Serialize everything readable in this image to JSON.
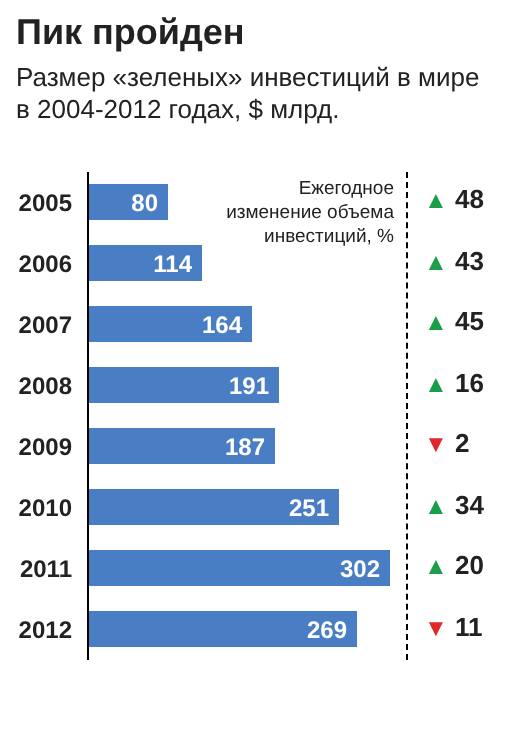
{
  "chart_data": {
    "type": "bar",
    "orientation": "horizontal",
    "title": "Пик пройден",
    "subtitle": "Размер «зеленых» инвестиций в мире в 2004-2012 годах, $ млрд.",
    "categories": [
      "2005",
      "2006",
      "2007",
      "2008",
      "2009",
      "2010",
      "2011",
      "2012"
    ],
    "values": [
      80,
      114,
      164,
      191,
      187,
      251,
      302,
      269
    ],
    "color": "#4a7ec4",
    "data_labels": true,
    "annotations": [
      "Ежегодное изменение объема инвестиций, %",
      "▲ 48",
      "▲ 43",
      "▲ 45",
      "▲ 16",
      "▼ 2",
      "▲ 34",
      "▲ 20",
      "▼ 11"
    ]
  }
}
